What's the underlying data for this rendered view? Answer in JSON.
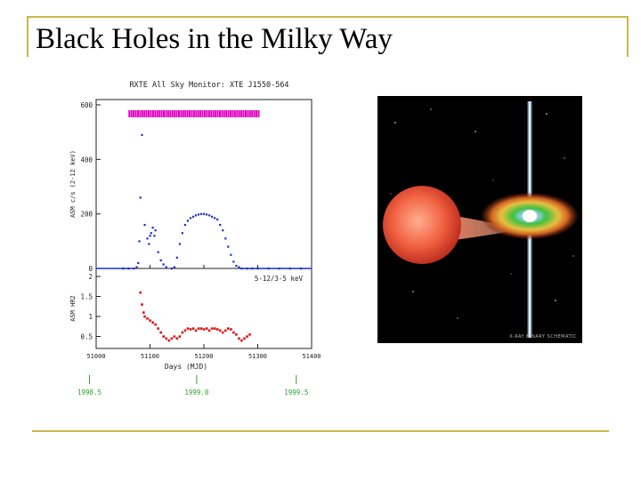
{
  "slide": {
    "title": "Black Holes in the Milky Way",
    "accent_color": "#c9b84a"
  },
  "figure": {
    "title": "RXTE All Sky Monitor: XTE J1550-564",
    "top_panel": {
      "ylabel": "ASM c/s (2-12 keV)",
      "y_ticks": [
        "0",
        "200",
        "400",
        "600"
      ]
    },
    "bottom_panel": {
      "ylabel": "ASM HR2",
      "y_ticks": [
        "0.5",
        "1",
        "1.5",
        "2"
      ],
      "label": "5-12/3-5 keV"
    },
    "x_ticks": [
      "51000",
      "51100",
      "51200",
      "51300",
      "51400"
    ],
    "xlabel": "Days (MJD)",
    "year_ticks": [
      "1998.5",
      "1999.0",
      "1999.5"
    ],
    "colors": {
      "rate": "#1a2fc8",
      "hr": "#e01010",
      "detect": "#e000c0",
      "years": "#2aa52a"
    }
  },
  "illustration": {
    "caption": "X-RAY BINARY SCHEMATIC",
    "icon": "x-ray-binary-illustration"
  },
  "chart_data": [
    {
      "type": "scatter",
      "title": "RXTE All Sky Monitor: XTE J1550-564",
      "xlabel": "",
      "ylabel": "ASM c/s (2-12 keV)",
      "xlim": [
        51000,
        51400
      ],
      "ylim": [
        0,
        600
      ],
      "grid": false,
      "series": [
        {
          "x": [
            51050,
            51060,
            51070,
            51075,
            51078,
            51080,
            51082,
            51085,
            51090,
            51095,
            51098,
            51100,
            51102,
            51105,
            51108,
            51110,
            51115,
            51120,
            51125,
            51130,
            51140,
            51145,
            51150,
            51155,
            51160,
            51165,
            51170,
            51175,
            51180,
            51185,
            51190,
            51195,
            51200,
            51205,
            51210,
            51215,
            51220,
            51225,
            51230,
            51235,
            51240,
            51245,
            51250,
            51255,
            51260,
            51265,
            51270,
            51280,
            51290,
            51300,
            51320,
            51340,
            51360,
            51380
          ],
          "values": [
            0,
            0,
            0,
            5,
            20,
            100,
            260,
            490,
            160,
            110,
            90,
            120,
            130,
            150,
            120,
            140,
            60,
            30,
            15,
            5,
            0,
            5,
            40,
            90,
            130,
            160,
            175,
            185,
            190,
            195,
            198,
            200,
            200,
            198,
            195,
            190,
            185,
            180,
            160,
            140,
            110,
            80,
            50,
            25,
            10,
            5,
            0,
            0,
            0,
            0,
            0,
            0,
            0,
            0
          ]
        }
      ]
    },
    {
      "type": "scatter",
      "title": "",
      "xlabel": "Days (MJD)",
      "ylabel": "ASM HR2",
      "xlim": [
        51000,
        51400
      ],
      "ylim": [
        0.2,
        2.2
      ],
      "grid": false,
      "annotations": [
        "5-12/3-5 keV"
      ],
      "series": [
        {
          "x": [
            51082,
            51085,
            51088,
            51090,
            51095,
            51100,
            51105,
            51110,
            51115,
            51120,
            51125,
            51130,
            51135,
            51140,
            51145,
            51150,
            51155,
            51160,
            51165,
            51170,
            51175,
            51180,
            51185,
            51190,
            51195,
            51200,
            51205,
            51210,
            51215,
            51220,
            51225,
            51230,
            51235,
            51240,
            51245,
            51250,
            51255,
            51260,
            51265,
            51270,
            51275,
            51280,
            51285
          ],
          "values": [
            1.6,
            1.3,
            1.1,
            1.0,
            0.95,
            0.9,
            0.85,
            0.8,
            0.7,
            0.6,
            0.5,
            0.45,
            0.4,
            0.45,
            0.5,
            0.45,
            0.5,
            0.6,
            0.65,
            0.7,
            0.68,
            0.7,
            0.65,
            0.7,
            0.7,
            0.68,
            0.7,
            0.65,
            0.7,
            0.7,
            0.68,
            0.65,
            0.6,
            0.65,
            0.7,
            0.68,
            0.6,
            0.55,
            0.45,
            0.4,
            0.45,
            0.5,
            0.55
          ]
        }
      ]
    }
  ]
}
